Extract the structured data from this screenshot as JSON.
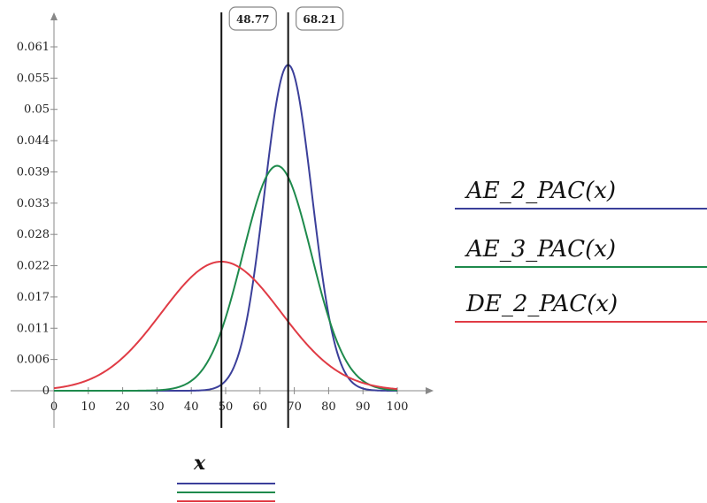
{
  "chart_data": {
    "type": "line",
    "x_range": [
      0,
      100
    ],
    "y_range": [
      0,
      0.061
    ],
    "x_ticks": [
      "0",
      "10",
      "20",
      "30",
      "40",
      "50",
      "60",
      "70",
      "80",
      "90",
      "100"
    ],
    "y_ticks": [
      "0",
      "0.006",
      "0.011",
      "0.017",
      "0.022",
      "0.028",
      "0.033",
      "0.039",
      "0.044",
      "0.05",
      "0.055",
      "0.061"
    ],
    "x_variable": "x",
    "markers": [
      {
        "x": 48.77,
        "label": "48.77"
      },
      {
        "x": 68.21,
        "label": "68.21"
      }
    ],
    "series": [
      {
        "name": "AE_2_PAC(x)",
        "color": "#3b3f9a",
        "distribution": "normal",
        "mean": 68.21,
        "sd": 6.9,
        "peak": 0.0578
      },
      {
        "name": "AE_3_PAC(x)",
        "color": "#1e8a4c",
        "distribution": "normal",
        "mean": 65.0,
        "sd": 10.0,
        "peak": 0.0399
      },
      {
        "name": "DE_2_PAC(x)",
        "color": "#e03b45",
        "distribution": "normal",
        "mean": 48.77,
        "sd": 17.4,
        "peak": 0.0229
      }
    ],
    "grid": false,
    "legend": "right"
  }
}
